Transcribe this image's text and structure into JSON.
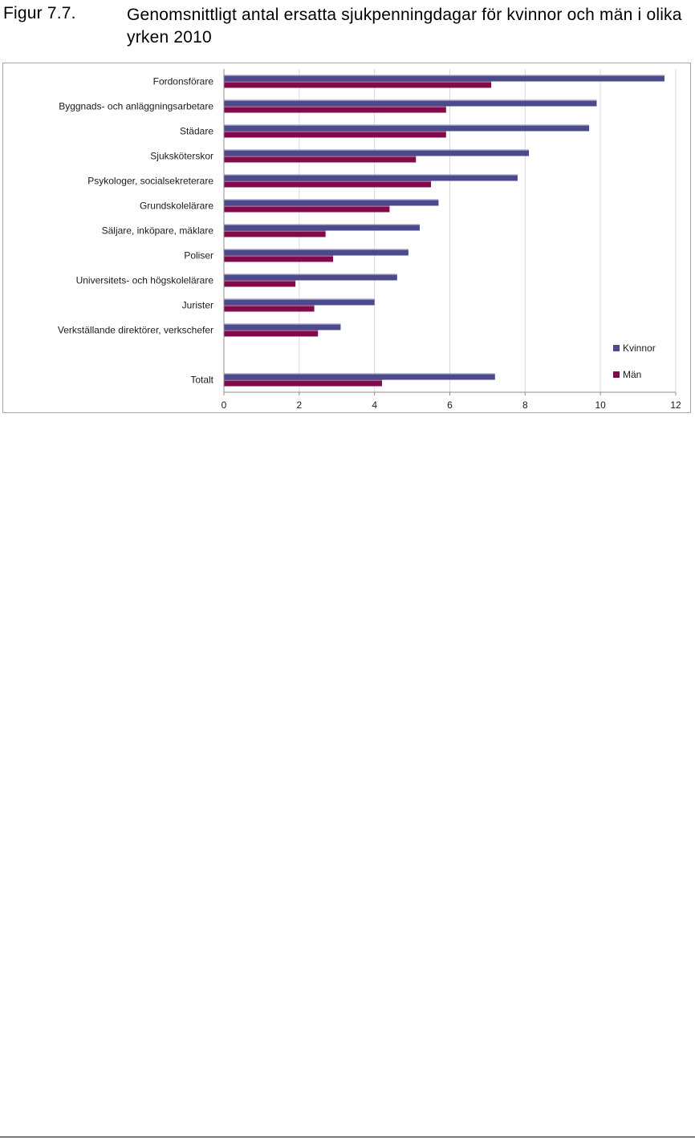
{
  "figure": {
    "label": "Figur 7.7.",
    "title": "Genomsnittligt antal ersatta sjukpenningdagar för kvinnor och män i olika yrken 2010"
  },
  "chart_data": {
    "type": "bar",
    "orientation": "horizontal",
    "title": "",
    "xlabel": "",
    "ylabel": "",
    "xlim": [
      0,
      12
    ],
    "xticks": [
      0,
      2,
      4,
      6,
      8,
      10,
      12
    ],
    "grid": true,
    "legend_position": "bottom-right",
    "categories": [
      "Fordonsförare",
      "Byggnads- och anläggningsarbetare",
      "Städare",
      "Sjuksköterskor",
      "Psykologer, socialsekreterare",
      "Grundskolelärare",
      "Säljare, inköpare, mäklare",
      "Poliser",
      "Universitets- och högskolelärare",
      "Jurister",
      "Verkställande direktörer, verkschefer",
      "",
      "Totalt"
    ],
    "series": [
      {
        "name": "Kvinnor",
        "color": "#4b4a8c",
        "values": [
          11.7,
          9.9,
          9.7,
          8.1,
          7.8,
          5.7,
          5.2,
          4.9,
          4.6,
          4.0,
          3.1,
          null,
          7.2
        ]
      },
      {
        "name": "Män",
        "color": "#800a4b",
        "values": [
          7.1,
          5.9,
          5.9,
          5.1,
          5.5,
          4.4,
          2.7,
          2.9,
          1.9,
          2.4,
          2.5,
          null,
          4.2
        ]
      }
    ]
  }
}
